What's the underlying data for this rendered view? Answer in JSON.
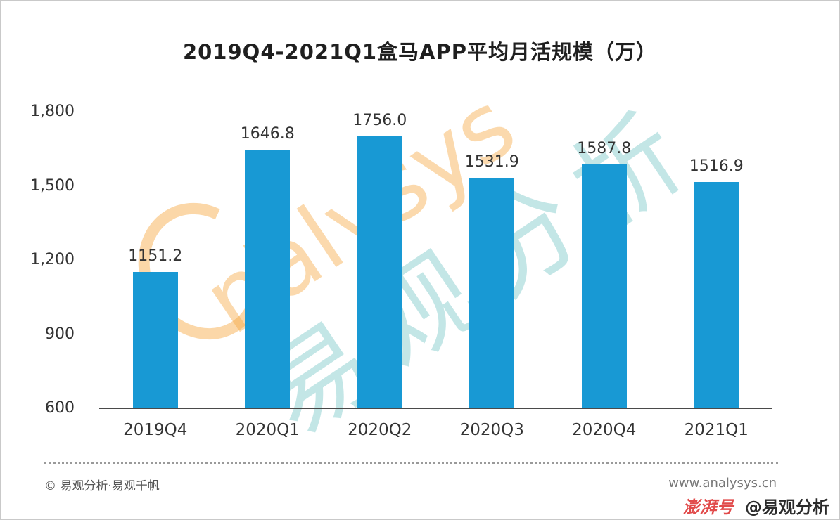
{
  "chart_data": {
    "type": "bar",
    "title": "2019Q4-2021Q1盒马APP平均月活规模（万）",
    "categories": [
      "2019Q4",
      "2020Q1",
      "2020Q2",
      "2020Q3",
      "2020Q4",
      "2021Q1"
    ],
    "values": [
      1151.2,
      1646.8,
      1756.0,
      1531.9,
      1587.8,
      1516.9
    ],
    "value_labels": [
      "1151.2",
      "1646.8",
      "1756.0",
      "1531.9",
      "1587.8",
      "1516.9"
    ],
    "xlabel": "",
    "ylabel": "",
    "ylim": [
      600,
      1800
    ],
    "yticks": [
      {
        "value": 600,
        "label": "600"
      },
      {
        "value": 900,
        "label": "900"
      },
      {
        "value": 1200,
        "label": "1,200"
      },
      {
        "value": 1500,
        "label": "1,500"
      },
      {
        "value": 1800,
        "label": "1,800"
      }
    ],
    "bar_color": "#1899D4",
    "grid": false,
    "legend": null
  },
  "watermark": {
    "brand_text": "nalysys",
    "cn_text": "易观分析",
    "orange": "#F6A73E",
    "teal": "#47B2B4"
  },
  "footer": {
    "left": "© 易观分析·易观千帆",
    "right": "www.analysys.cn"
  },
  "attribution": {
    "logo": "澎湃号",
    "handle": "@易观分析"
  }
}
